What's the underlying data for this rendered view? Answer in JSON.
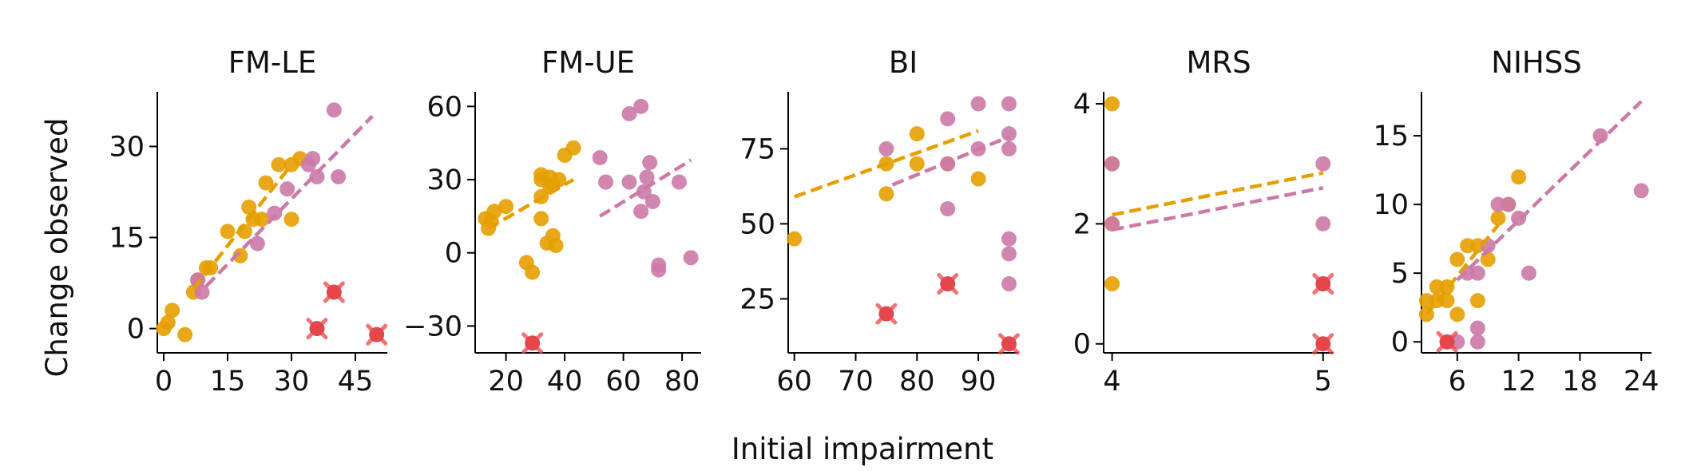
{
  "figure": {
    "xlabel": "Initial impairment",
    "ylabel": "Change observed"
  },
  "colors": {
    "group_a": "#E69F00",
    "group_b": "#CC79A7",
    "excluded": "#EE4444"
  },
  "chart_data": [
    {
      "type": "scatter",
      "title": "FM-LE",
      "xlim": [
        -1.5,
        52.5
      ],
      "ylim": [
        -4,
        39
      ],
      "xticks": [
        0,
        15,
        30,
        45
      ],
      "xtick_labels": [
        "0",
        "15",
        "30",
        "45"
      ],
      "yticks": [
        0,
        15,
        30
      ],
      "ytick_labels": [
        "0",
        "15",
        "30"
      ],
      "series": [
        {
          "values": [
            [
              0,
              0
            ],
            [
              1,
              1
            ],
            [
              2,
              3
            ],
            [
              5,
              -1
            ],
            [
              7,
              6
            ],
            [
              8,
              8
            ],
            [
              10,
              10
            ],
            [
              11,
              10
            ],
            [
              15,
              16
            ],
            [
              18,
              12
            ],
            [
              19,
              16
            ],
            [
              20,
              20
            ],
            [
              21,
              18
            ],
            [
              23,
              18
            ],
            [
              24,
              24
            ],
            [
              27,
              27
            ],
            [
              30,
              18
            ],
            [
              30,
              27
            ],
            [
              32,
              28
            ]
          ],
          "fit": [
            [
              7,
              6.5
            ],
            [
              30,
              27
            ]
          ]
        },
        {
          "values": [
            [
              8,
              8
            ],
            [
              9,
              6
            ],
            [
              22,
              14
            ],
            [
              26,
              19
            ],
            [
              29,
              23
            ],
            [
              34,
              27
            ],
            [
              35,
              28
            ],
            [
              36,
              25
            ],
            [
              40,
              36
            ],
            [
              41,
              25
            ]
          ],
          "fit": [
            [
              10,
              7
            ],
            [
              49,
              35
            ]
          ]
        }
      ],
      "excluded": [
        [
          36,
          0
        ],
        [
          40,
          6
        ],
        [
          50,
          -1
        ]
      ]
    },
    {
      "type": "scatter",
      "title": "FM-UE",
      "xlim": [
        9.5,
        86.5
      ],
      "ylim": [
        -41,
        66
      ],
      "xticks": [
        20,
        40,
        60,
        80
      ],
      "xtick_labels": [
        "20",
        "40",
        "60",
        "80"
      ],
      "yticks": [
        -30,
        0,
        30,
        60
      ],
      "ytick_labels": [
        "−30",
        "0",
        "30",
        "60"
      ],
      "series": [
        {
          "values": [
            [
              13,
              14
            ],
            [
              14,
              10
            ],
            [
              15,
              13
            ],
            [
              16,
              17
            ],
            [
              20,
              19
            ],
            [
              27,
              -4
            ],
            [
              29,
              -8
            ],
            [
              32,
              14
            ],
            [
              32,
              23
            ],
            [
              32,
              30
            ],
            [
              32,
              32
            ],
            [
              34,
              4
            ],
            [
              35,
              27
            ],
            [
              35,
              31
            ],
            [
              36,
              7
            ],
            [
              36,
              28
            ],
            [
              37,
              3
            ],
            [
              38,
              30
            ],
            [
              40,
              40
            ],
            [
              43,
              43
            ]
          ],
          "fit": [
            [
              14,
              10
            ],
            [
              43,
              30
            ]
          ]
        },
        {
          "values": [
            [
              52,
              39
            ],
            [
              54,
              29
            ],
            [
              62,
              29
            ],
            [
              62,
              57
            ],
            [
              66,
              60
            ],
            [
              66,
              17
            ],
            [
              67,
              25
            ],
            [
              68,
              31
            ],
            [
              69,
              37
            ],
            [
              70,
              21
            ],
            [
              72,
              -5
            ],
            [
              72,
              -7
            ],
            [
              79,
              29
            ],
            [
              83,
              -2
            ]
          ],
          "fit": [
            [
              52,
              15
            ],
            [
              83,
              38
            ]
          ]
        }
      ],
      "excluded": [
        [
          29,
          -37
        ]
      ]
    },
    {
      "type": "scatter",
      "title": "BI",
      "xlim": [
        59,
        96.5
      ],
      "ylim": [
        7,
        94
      ],
      "xticks": [
        60,
        70,
        80,
        90
      ],
      "xtick_labels": [
        "60",
        "70",
        "80",
        "90"
      ],
      "yticks": [
        25,
        50,
        75
      ],
      "ytick_labels": [
        "25",
        "50",
        "75"
      ],
      "series": [
        {
          "values": [
            [
              60,
              45
            ],
            [
              75,
              60
            ],
            [
              75,
              70
            ],
            [
              80,
              70
            ],
            [
              80,
              80
            ],
            [
              85,
              70
            ],
            [
              90,
              65
            ]
          ],
          "fit": [
            [
              60,
              59
            ],
            [
              90,
              81
            ]
          ]
        },
        {
          "values": [
            [
              75,
              75
            ],
            [
              85,
              55
            ],
            [
              85,
              70
            ],
            [
              85,
              85
            ],
            [
              90,
              75
            ],
            [
              90,
              90
            ],
            [
              95,
              30
            ],
            [
              95,
              40
            ],
            [
              95,
              45
            ],
            [
              95,
              75
            ],
            [
              95,
              80
            ],
            [
              95,
              90
            ]
          ],
          "fit": [
            [
              76,
              63
            ],
            [
              95,
              79
            ]
          ]
        }
      ],
      "excluded": [
        [
          75,
          20
        ],
        [
          85,
          30
        ],
        [
          95,
          10
        ]
      ]
    },
    {
      "type": "scatter",
      "title": "MRS",
      "xlim": [
        3.96,
        5.05
      ],
      "ylim": [
        -0.15,
        4.2
      ],
      "xticks": [
        4,
        5
      ],
      "xtick_labels": [
        "4",
        "5"
      ],
      "yticks": [
        0,
        2,
        4
      ],
      "ytick_labels": [
        "0",
        "2",
        "4"
      ],
      "series": [
        {
          "values": [
            [
              4,
              1
            ],
            [
              4,
              2
            ],
            [
              4,
              3
            ],
            [
              4,
              4
            ]
          ],
          "fit": [
            [
              4,
              2.15
            ],
            [
              5,
              2.85
            ]
          ]
        },
        {
          "values": [
            [
              4,
              2
            ],
            [
              4,
              3
            ],
            [
              5,
              2
            ],
            [
              5,
              3
            ]
          ],
          "fit": [
            [
              4,
              1.9
            ],
            [
              5,
              2.6
            ]
          ]
        }
      ],
      "excluded": [
        [
          5,
          1
        ],
        [
          5,
          0
        ]
      ]
    },
    {
      "type": "scatter",
      "title": "NIHSS",
      "xlim": [
        2.5,
        25
      ],
      "ylim": [
        -0.8,
        18.2
      ],
      "xticks": [
        6,
        12,
        18,
        24
      ],
      "xtick_labels": [
        "6",
        "12",
        "18",
        "24"
      ],
      "yticks": [
        0,
        5,
        10,
        15
      ],
      "ytick_labels": [
        "0",
        "5",
        "10",
        "15"
      ],
      "series": [
        {
          "values": [
            [
              3,
              2
            ],
            [
              3,
              3
            ],
            [
              4,
              3
            ],
            [
              4,
              4
            ],
            [
              5,
              3
            ],
            [
              5,
              4
            ],
            [
              6,
              2
            ],
            [
              6,
              6
            ],
            [
              7,
              7
            ],
            [
              8,
              7
            ],
            [
              8,
              3
            ],
            [
              9,
              6
            ],
            [
              10,
              9
            ],
            [
              11,
              10
            ],
            [
              12,
              12
            ]
          ],
          "fit": [
            [
              3,
              2
            ],
            [
              10,
              8.5
            ]
          ]
        },
        {
          "values": [
            [
              6,
              0
            ],
            [
              7,
              5
            ],
            [
              8,
              0
            ],
            [
              8,
              1
            ],
            [
              8,
              5
            ],
            [
              9,
              7
            ],
            [
              10,
              10
            ],
            [
              11,
              10
            ],
            [
              12,
              9
            ],
            [
              13,
              5
            ],
            [
              20,
              15
            ],
            [
              24,
              11
            ]
          ],
          "fit": [
            [
              6,
              4.5
            ],
            [
              24,
              17.5
            ]
          ]
        }
      ],
      "excluded": [
        [
          5,
          0
        ]
      ]
    }
  ]
}
